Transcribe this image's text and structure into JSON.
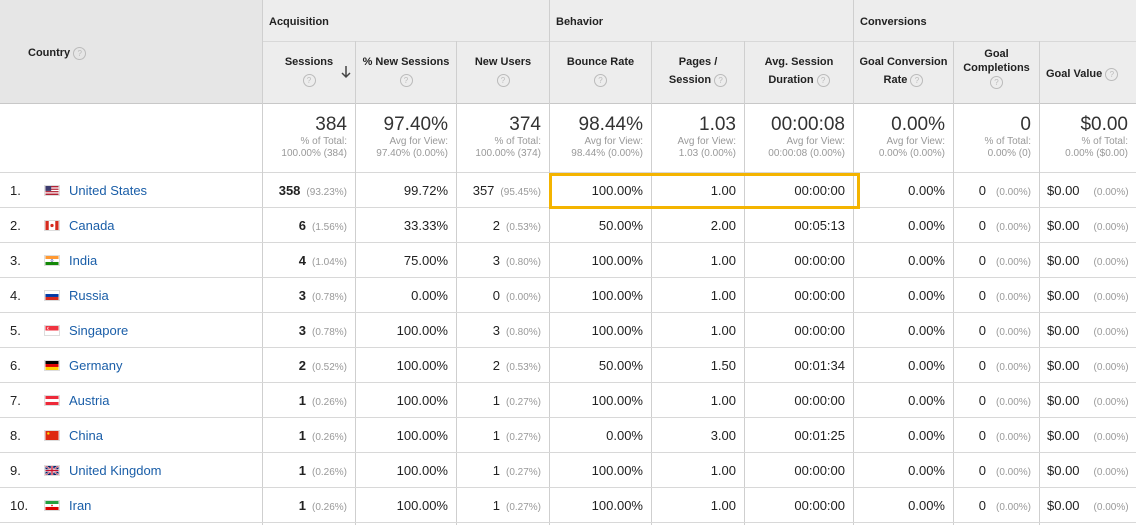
{
  "groups": {
    "acquisition": "Acquisition",
    "behavior": "Behavior",
    "conversions": "Conversions"
  },
  "columns": {
    "country": "Country",
    "sessions": "Sessions",
    "new_sessions_pct": "% New Sessions",
    "new_users": "New Users",
    "bounce_rate": "Bounce Rate",
    "pages_session_1": "Pages /",
    "pages_session_2": "Session",
    "avg_session_1": "Avg. Session",
    "avg_session_2": "Duration",
    "goal_conv_1": "Goal Conversion",
    "goal_conv_2": "Rate",
    "goal_comp_1": "Goal",
    "goal_comp_2": "Completions",
    "goal_value": "Goal Value"
  },
  "totals": [
    {
      "big": "384",
      "sub1": "% of Total:",
      "sub2": "100.00% (384)"
    },
    {
      "big": "97.40%",
      "sub1": "Avg for View:",
      "sub2": "97.40% (0.00%)"
    },
    {
      "big": "374",
      "sub1": "% of Total:",
      "sub2": "100.00% (374)"
    },
    {
      "big": "98.44%",
      "sub1": "Avg for View:",
      "sub2": "98.44% (0.00%)"
    },
    {
      "big": "1.03",
      "sub1": "Avg for View:",
      "sub2": "1.03 (0.00%)"
    },
    {
      "big": "00:00:08",
      "sub1": "Avg for View:",
      "sub2": "00:00:08 (0.00%)"
    },
    {
      "big": "0.00%",
      "sub1": "Avg for View:",
      "sub2": "0.00% (0.00%)"
    },
    {
      "big": "0",
      "sub1": "% of Total:",
      "sub2": "0.00% (0)"
    },
    {
      "big": "$0.00",
      "sub1": "% of Total:",
      "sub2": "0.00% ($0.00)"
    }
  ],
  "rows": [
    {
      "idx": "1.",
      "flag": "us",
      "country": "United States",
      "sessions": "358",
      "sessions_pct": "(93.23%)",
      "new_sessions": "99.72%",
      "new_users": "357",
      "new_users_pct": "(95.45%)",
      "bounce": "100.00%",
      "pages": "1.00",
      "duration": "00:00:00",
      "gcr": "0.00%",
      "gc": "0",
      "gc_pct": "(0.00%)",
      "gv": "$0.00",
      "gv_pct": "(0.00%)"
    },
    {
      "idx": "2.",
      "flag": "ca",
      "country": "Canada",
      "sessions": "6",
      "sessions_pct": "(1.56%)",
      "new_sessions": "33.33%",
      "new_users": "2",
      "new_users_pct": "(0.53%)",
      "bounce": "50.00%",
      "pages": "2.00",
      "duration": "00:05:13",
      "gcr": "0.00%",
      "gc": "0",
      "gc_pct": "(0.00%)",
      "gv": "$0.00",
      "gv_pct": "(0.00%)"
    },
    {
      "idx": "3.",
      "flag": "in",
      "country": "India",
      "sessions": "4",
      "sessions_pct": "(1.04%)",
      "new_sessions": "75.00%",
      "new_users": "3",
      "new_users_pct": "(0.80%)",
      "bounce": "100.00%",
      "pages": "1.00",
      "duration": "00:00:00",
      "gcr": "0.00%",
      "gc": "0",
      "gc_pct": "(0.00%)",
      "gv": "$0.00",
      "gv_pct": "(0.00%)"
    },
    {
      "idx": "4.",
      "flag": "ru",
      "country": "Russia",
      "sessions": "3",
      "sessions_pct": "(0.78%)",
      "new_sessions": "0.00%",
      "new_users": "0",
      "new_users_pct": "(0.00%)",
      "bounce": "100.00%",
      "pages": "1.00",
      "duration": "00:00:00",
      "gcr": "0.00%",
      "gc": "0",
      "gc_pct": "(0.00%)",
      "gv": "$0.00",
      "gv_pct": "(0.00%)"
    },
    {
      "idx": "5.",
      "flag": "sg",
      "country": "Singapore",
      "sessions": "3",
      "sessions_pct": "(0.78%)",
      "new_sessions": "100.00%",
      "new_users": "3",
      "new_users_pct": "(0.80%)",
      "bounce": "100.00%",
      "pages": "1.00",
      "duration": "00:00:00",
      "gcr": "0.00%",
      "gc": "0",
      "gc_pct": "(0.00%)",
      "gv": "$0.00",
      "gv_pct": "(0.00%)"
    },
    {
      "idx": "6.",
      "flag": "de",
      "country": "Germany",
      "sessions": "2",
      "sessions_pct": "(0.52%)",
      "new_sessions": "100.00%",
      "new_users": "2",
      "new_users_pct": "(0.53%)",
      "bounce": "50.00%",
      "pages": "1.50",
      "duration": "00:01:34",
      "gcr": "0.00%",
      "gc": "0",
      "gc_pct": "(0.00%)",
      "gv": "$0.00",
      "gv_pct": "(0.00%)"
    },
    {
      "idx": "7.",
      "flag": "at",
      "country": "Austria",
      "sessions": "1",
      "sessions_pct": "(0.26%)",
      "new_sessions": "100.00%",
      "new_users": "1",
      "new_users_pct": "(0.27%)",
      "bounce": "100.00%",
      "pages": "1.00",
      "duration": "00:00:00",
      "gcr": "0.00%",
      "gc": "0",
      "gc_pct": "(0.00%)",
      "gv": "$0.00",
      "gv_pct": "(0.00%)"
    },
    {
      "idx": "8.",
      "flag": "cn",
      "country": "China",
      "sessions": "1",
      "sessions_pct": "(0.26%)",
      "new_sessions": "100.00%",
      "new_users": "1",
      "new_users_pct": "(0.27%)",
      "bounce": "0.00%",
      "pages": "3.00",
      "duration": "00:01:25",
      "gcr": "0.00%",
      "gc": "0",
      "gc_pct": "(0.00%)",
      "gv": "$0.00",
      "gv_pct": "(0.00%)"
    },
    {
      "idx": "9.",
      "flag": "gb",
      "country": "United Kingdom",
      "sessions": "1",
      "sessions_pct": "(0.26%)",
      "new_sessions": "100.00%",
      "new_users": "1",
      "new_users_pct": "(0.27%)",
      "bounce": "100.00%",
      "pages": "1.00",
      "duration": "00:00:00",
      "gcr": "0.00%",
      "gc": "0",
      "gc_pct": "(0.00%)",
      "gv": "$0.00",
      "gv_pct": "(0.00%)"
    },
    {
      "idx": "10.",
      "flag": "ir",
      "country": "Iran",
      "sessions": "1",
      "sessions_pct": "(0.26%)",
      "new_sessions": "100.00%",
      "new_users": "1",
      "new_users_pct": "(0.27%)",
      "bounce": "100.00%",
      "pages": "1.00",
      "duration": "00:00:00",
      "gcr": "0.00%",
      "gc": "0",
      "gc_pct": "(0.00%)",
      "gv": "$0.00",
      "gv_pct": "(0.00%)"
    }
  ],
  "help_icon_glyph": "?",
  "sort_icon": "arrow-down-icon",
  "highlight_color": "#f4b400",
  "link_color": "#1a5ea8"
}
